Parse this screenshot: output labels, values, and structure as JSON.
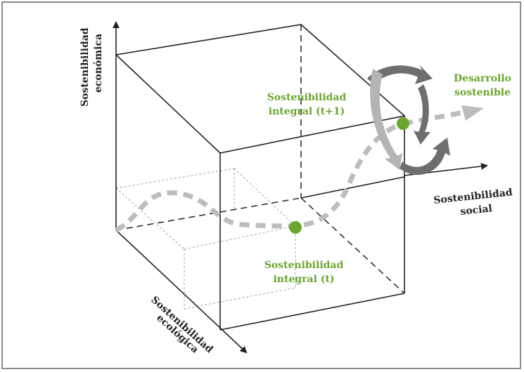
{
  "axes": {
    "economica": [
      "Sostenibilidad",
      "económica"
    ],
    "social": [
      "Sostenibilidad",
      "social"
    ],
    "ecologica": [
      "Sostenibilidad",
      "ecológica"
    ]
  },
  "points": {
    "t": [
      "Sostenibilidad",
      "integral (t)"
    ],
    "t1": [
      "Sostenibilidad",
      "integral (t+1)"
    ]
  },
  "target": [
    "Desarrollo",
    "sostenible"
  ],
  "colors": {
    "green": "#6aa62f",
    "path_gray": "#bdbdbd",
    "axis": "#222222",
    "cycle_dark": "#6e6e6e",
    "cycle_light": "#b4b4b4"
  }
}
